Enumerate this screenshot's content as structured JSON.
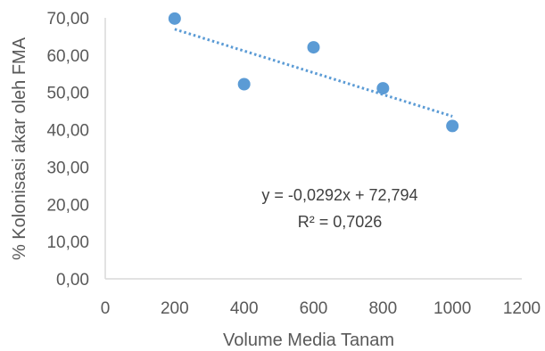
{
  "chart_data": {
    "type": "scatter",
    "x_values": [
      200,
      400,
      600,
      800,
      1000
    ],
    "y_values": [
      69.8,
      52.2,
      62.1,
      51.1,
      41.0
    ],
    "xlabel": "Volume Media Tanam",
    "ylabel": "% Kolonisasi akar oleh FMA",
    "xlim": [
      0,
      1200
    ],
    "ylim": [
      0,
      70
    ],
    "x_ticks": [
      "0",
      "200",
      "400",
      "600",
      "800",
      "1000",
      "1200"
    ],
    "y_ticks": [
      "0,00",
      "10,00",
      "20,00",
      "30,00",
      "40,00",
      "50,00",
      "60,00",
      "70,00"
    ],
    "trendline": {
      "type": "linear",
      "slope": -0.0292,
      "intercept": 72.794,
      "x_range": [
        200,
        1000
      ],
      "equation": "y = -0,0292x + 72,794",
      "r_squared": "R² = 0,7026"
    },
    "grid": false,
    "legend": "none",
    "colors": {
      "marker": "#5B9BD5",
      "trendline": "#5B9BD5",
      "axis": "#D9D9D9"
    }
  }
}
